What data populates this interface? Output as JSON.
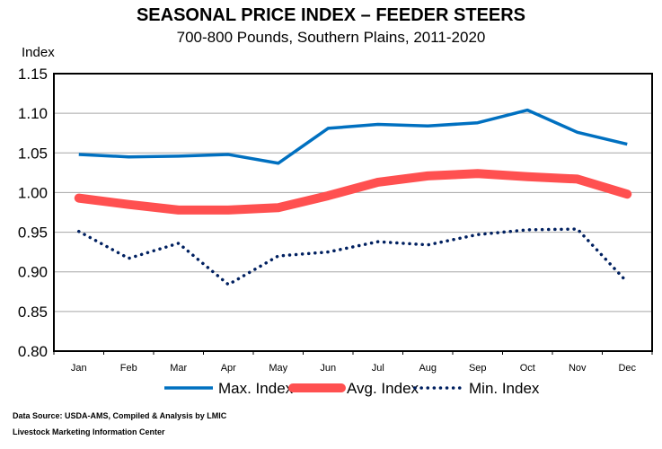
{
  "chart_data": {
    "type": "line",
    "title": "SEASONAL PRICE INDEX – FEEDER STEERS",
    "subtitle": "700-800 Pounds, Southern Plains, 2011-2020",
    "ylabel": "Index",
    "xlabel": "",
    "ylim": [
      0.8,
      1.15
    ],
    "yticks": [
      "0.80",
      "0.85",
      "0.90",
      "0.95",
      "1.00",
      "1.05",
      "1.10",
      "1.15"
    ],
    "grid": true,
    "legend": "bottom",
    "categories": [
      "Jan",
      "Feb",
      "Mar",
      "Apr",
      "May",
      "Jun",
      "Jul",
      "Aug",
      "Sep",
      "Oct",
      "Nov",
      "Dec"
    ],
    "series": [
      {
        "name": "Max. Index",
        "color": "#0070C0",
        "style": "solid",
        "values": [
          1.048,
          1.045,
          1.046,
          1.048,
          1.037,
          1.081,
          1.086,
          1.084,
          1.088,
          1.104,
          1.076,
          1.061
        ]
      },
      {
        "name": "Avg. Index",
        "color": "#FF5050",
        "style": "thick",
        "values": [
          0.993,
          0.985,
          0.978,
          0.978,
          0.981,
          0.996,
          1.013,
          1.021,
          1.024,
          1.02,
          1.017,
          0.998
        ]
      },
      {
        "name": "Min. Index",
        "color": "#002060",
        "style": "dotted",
        "values": [
          0.951,
          0.917,
          0.936,
          0.884,
          0.92,
          0.925,
          0.938,
          0.934,
          0.947,
          0.953,
          0.954,
          0.887
        ]
      }
    ]
  },
  "footer": {
    "source": "Data Source:  USDA-AMS, Compiled & Analysis by LMIC",
    "org": "Livestock Marketing Information Center"
  }
}
